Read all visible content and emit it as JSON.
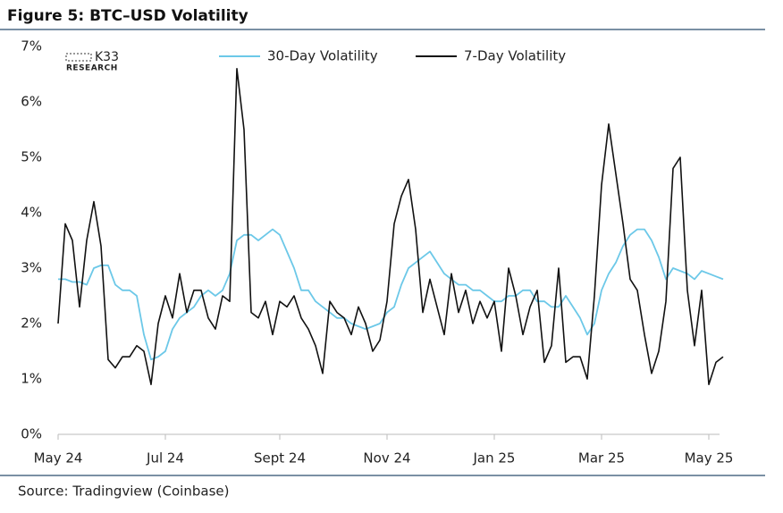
{
  "chart_data": {
    "type": "line",
    "title": "Figure 5: BTC–USD Volatility",
    "source": "Source: Tradingview (Coinbase)",
    "logo": {
      "name": "K33",
      "sub": "RESEARCH"
    },
    "categories": [
      "May 24",
      null,
      null,
      null,
      null,
      null,
      null,
      null,
      null,
      null,
      null,
      null,
      null,
      null,
      null,
      "Jul 24",
      null,
      null,
      null,
      null,
      null,
      null,
      null,
      null,
      null,
      null,
      null,
      null,
      null,
      null,
      null,
      "Sept 24",
      null,
      null,
      null,
      null,
      null,
      null,
      null,
      null,
      null,
      null,
      null,
      null,
      null,
      null,
      "Nov 24",
      null,
      null,
      null,
      null,
      null,
      null,
      null,
      null,
      null,
      null,
      null,
      null,
      null,
      null,
      "Jan 25",
      null,
      null,
      null,
      null,
      null,
      null,
      null,
      null,
      null,
      null,
      null,
      null,
      null,
      null,
      "Mar 25",
      null,
      null,
      null,
      null,
      null,
      null,
      null,
      null,
      null,
      null,
      null,
      null,
      null,
      null,
      "May 25",
      null,
      null
    ],
    "series": [
      {
        "name": "30-Day Volatility",
        "color": "#6cc8e8",
        "values": [
          2.8,
          2.8,
          2.75,
          2.75,
          2.7,
          3.0,
          3.05,
          3.05,
          2.7,
          2.6,
          2.6,
          2.5,
          1.8,
          1.35,
          1.4,
          1.5,
          1.9,
          2.1,
          2.2,
          2.3,
          2.5,
          2.6,
          2.5,
          2.6,
          2.9,
          3.5,
          3.6,
          3.6,
          3.5,
          3.6,
          3.7,
          3.6,
          3.3,
          3.0,
          2.6,
          2.6,
          2.4,
          2.3,
          2.2,
          2.1,
          2.1,
          2.0,
          1.95,
          1.9,
          1.95,
          2.0,
          2.2,
          2.3,
          2.7,
          3.0,
          3.1,
          3.2,
          3.3,
          3.1,
          2.9,
          2.8,
          2.7,
          2.7,
          2.6,
          2.6,
          2.5,
          2.4,
          2.4,
          2.5,
          2.5,
          2.6,
          2.6,
          2.4,
          2.4,
          2.3,
          2.3,
          2.5,
          2.3,
          2.1,
          1.8,
          2.0,
          2.6,
          2.9,
          3.1,
          3.4,
          3.6,
          3.7,
          3.7,
          3.5,
          3.2,
          2.8,
          3.0,
          2.95,
          2.9,
          2.8,
          2.95,
          2.9,
          2.85,
          2.8
        ]
      },
      {
        "name": "7-Day Volatility",
        "color": "#111111",
        "values": [
          2.0,
          3.8,
          3.5,
          2.3,
          3.5,
          4.2,
          3.4,
          1.35,
          1.2,
          1.4,
          1.4,
          1.6,
          1.5,
          0.9,
          2.0,
          2.5,
          2.1,
          2.9,
          2.2,
          2.6,
          2.6,
          2.1,
          1.9,
          2.5,
          2.4,
          6.6,
          5.5,
          2.2,
          2.1,
          2.4,
          1.8,
          2.4,
          2.3,
          2.5,
          2.1,
          1.9,
          1.6,
          1.1,
          2.4,
          2.2,
          2.1,
          1.8,
          2.3,
          2.0,
          1.5,
          1.7,
          2.4,
          3.8,
          4.3,
          4.6,
          3.7,
          2.2,
          2.8,
          2.3,
          1.8,
          2.9,
          2.2,
          2.6,
          2.0,
          2.4,
          2.1,
          2.4,
          1.5,
          3.0,
          2.5,
          1.8,
          2.3,
          2.6,
          1.3,
          1.6,
          3.0,
          1.3,
          1.4,
          1.4,
          1.0,
          2.5,
          4.5,
          5.6,
          4.7,
          3.8,
          2.8,
          2.6,
          1.8,
          1.1,
          1.5,
          2.4,
          4.8,
          5.0,
          2.6,
          1.6,
          2.6,
          0.9,
          1.3,
          1.4
        ]
      }
    ],
    "ylim": [
      0,
      7
    ],
    "yticks": [
      {
        "value": 0,
        "label": "0%"
      },
      {
        "value": 1,
        "label": "1%"
      },
      {
        "value": 2,
        "label": "2%"
      },
      {
        "value": 3,
        "label": "3%"
      },
      {
        "value": 4,
        "label": "4%"
      },
      {
        "value": 5,
        "label": "5%"
      },
      {
        "value": 6,
        "label": "6%"
      },
      {
        "value": 7,
        "label": "7%"
      }
    ],
    "grid": false
  }
}
